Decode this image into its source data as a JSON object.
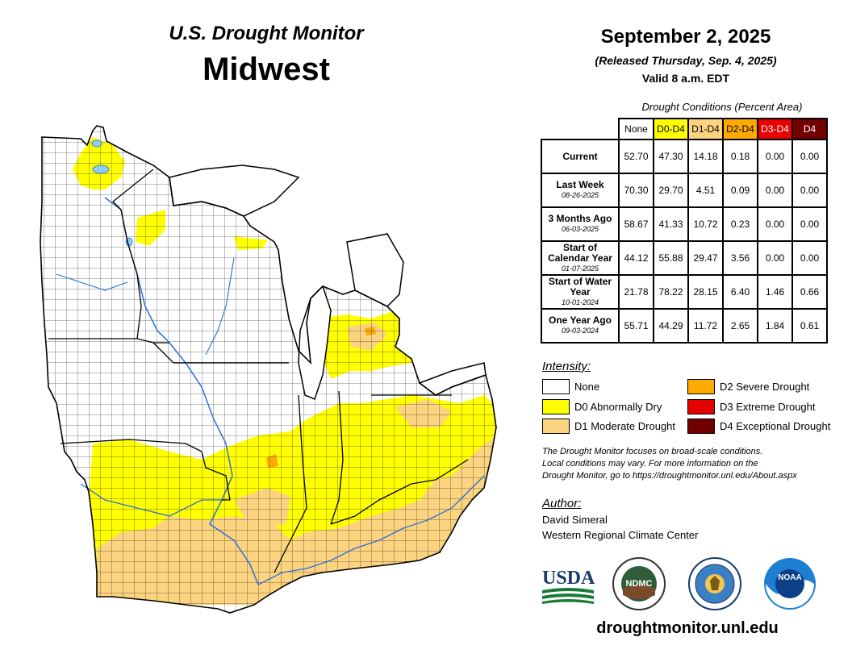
{
  "header": {
    "product": "U.S. Drought Monitor",
    "region": "Midwest",
    "date": "September 2, 2025",
    "released": "(Released Thursday, Sep. 4, 2025)",
    "valid": "Valid 8 a.m. EDT"
  },
  "table": {
    "caption": "Drought Conditions (Percent Area)",
    "columns": [
      "None",
      "D0-D4",
      "D1-D4",
      "D2-D4",
      "D3-D4",
      "D4"
    ],
    "rows": [
      {
        "label": "Current",
        "date": "",
        "values": [
          "52.70",
          "47.30",
          "14.18",
          "0.18",
          "0.00",
          "0.00"
        ]
      },
      {
        "label": "Last Week",
        "date": "08-26-2025",
        "values": [
          "70.30",
          "29.70",
          "4.51",
          "0.09",
          "0.00",
          "0.00"
        ]
      },
      {
        "label": "3 Months Ago",
        "date": "06-03-2025",
        "values": [
          "58.67",
          "41.33",
          "10.72",
          "0.23",
          "0.00",
          "0.00"
        ]
      },
      {
        "label": "Start of Calendar Year",
        "date": "01-07-2025",
        "values": [
          "44.12",
          "55.88",
          "29.47",
          "3.56",
          "0.00",
          "0.00"
        ]
      },
      {
        "label": "Start of Water Year",
        "date": "10-01-2024",
        "values": [
          "21.78",
          "78.22",
          "28.15",
          "6.40",
          "1.46",
          "0.66"
        ]
      },
      {
        "label": "One Year Ago",
        "date": "09-03-2024",
        "values": [
          "55.71",
          "44.29",
          "11.72",
          "2.65",
          "1.84",
          "0.61"
        ]
      }
    ]
  },
  "legend": {
    "title": "Intensity:",
    "items": [
      {
        "label": "None",
        "color": "#ffffff"
      },
      {
        "label": "D0 Abnormally Dry",
        "color": "#ffff00"
      },
      {
        "label": "D1 Moderate Drought",
        "color": "#fcd37f"
      },
      {
        "label": "D2 Severe Drought",
        "color": "#ffaa00"
      },
      {
        "label": "D3 Extreme Drought",
        "color": "#e60000"
      },
      {
        "label": "D4 Exceptional Drought",
        "color": "#730000"
      }
    ]
  },
  "note": {
    "line1": "The Drought Monitor focuses on broad-scale conditions.",
    "line2": "Local conditions may vary. For more information on the",
    "line3": "Drought Monitor, go to https://droughtmonitor.unl.edu/About.aspx"
  },
  "author": {
    "title": "Author:",
    "name": "David Simeral",
    "org": "Western Regional Climate Center"
  },
  "logos": {
    "usda": "USDA",
    "ndmc": "NDMC",
    "noaa": "NOAA"
  },
  "website": "droughtmonitor.unl.edu",
  "map_colors": {
    "none": "#ffffff",
    "d0": "#ffff00",
    "d1": "#fcd37f",
    "d2": "#ffaa00",
    "water": "#8ecfef",
    "river": "#2b6fd6",
    "border": "#000000"
  }
}
